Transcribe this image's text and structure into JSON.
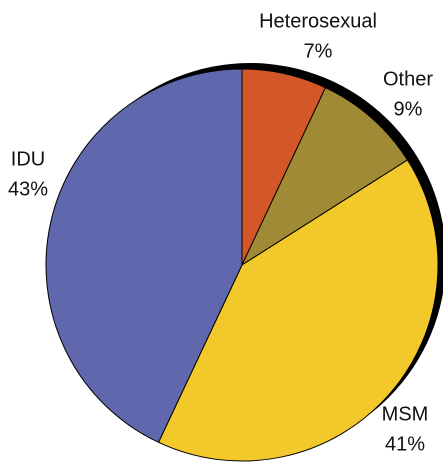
{
  "chart_data": {
    "type": "pie",
    "categories": [
      "Heterosexual",
      "Other",
      "MSM",
      "IDU"
    ],
    "values": [
      7,
      9,
      41,
      43
    ],
    "value_labels": [
      "7%",
      "9%",
      "41%",
      "43%"
    ],
    "colors": [
      "#d4572a",
      "#a08a35",
      "#f2c82a",
      "#6068ad"
    ]
  }
}
